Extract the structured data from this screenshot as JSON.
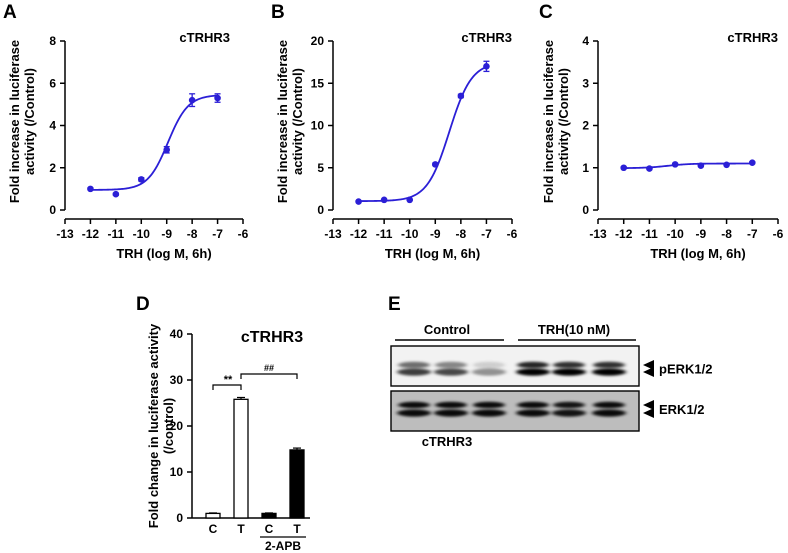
{
  "panel_labels": [
    "A",
    "B",
    "C",
    "D",
    "E"
  ],
  "colors": {
    "curve": "#2b1fd6",
    "axis": "#000000",
    "bar_control": "#ffffff",
    "bar_treated_white": "#ffffff",
    "bar_black": "#000000"
  },
  "chart_data": [
    {
      "panel": "A",
      "type": "line",
      "title": "cTRHR3",
      "xlabel": "TRH (log M, 6h)",
      "ylabel": "Fold increase in luciferase activity (/Control)",
      "xlim": [
        -13,
        -6
      ],
      "ylim": [
        0,
        8
      ],
      "xticks": [
        -13,
        -12,
        -11,
        -10,
        -9,
        -8,
        -7,
        -6
      ],
      "yticks": [
        0,
        2,
        4,
        6,
        8
      ],
      "x": [
        -12,
        -11,
        -10,
        -9,
        -8,
        -7
      ],
      "y": [
        1.0,
        0.75,
        1.45,
        2.85,
        5.2,
        5.3
      ],
      "err": [
        0.05,
        0.05,
        0.08,
        0.15,
        0.3,
        0.2
      ],
      "fit": {
        "bottom": 0.95,
        "top": 5.45,
        "logEC50": -8.95,
        "hill": 1.1
      }
    },
    {
      "panel": "B",
      "type": "line",
      "title": "cTRHR3",
      "xlabel": "TRH (log M, 6h)",
      "ylabel": "Fold increase in luciferase activity (/Control)",
      "xlim": [
        -13,
        -6
      ],
      "ylim": [
        0,
        20
      ],
      "xticks": [
        -13,
        -12,
        -11,
        -10,
        -9,
        -8,
        -7,
        -6
      ],
      "yticks": [
        0,
        5,
        10,
        15,
        20
      ],
      "x": [
        -12,
        -11,
        -10,
        -9,
        -8,
        -7
      ],
      "y": [
        1.0,
        1.2,
        1.2,
        5.4,
        13.5,
        17.0
      ],
      "err": [
        0.05,
        0.05,
        0.05,
        0.15,
        0.2,
        0.6
      ],
      "fit": {
        "bottom": 1.05,
        "top": 17.5,
        "logEC50": -8.45,
        "hill": 1.0
      }
    },
    {
      "panel": "C",
      "type": "line",
      "title": "cTRHR3",
      "xlabel": "TRH (log M, 6h)",
      "ylabel": "Fold increase in luciferase activity (/Control)",
      "xlim": [
        -13,
        -6
      ],
      "ylim": [
        0,
        4
      ],
      "xticks": [
        -13,
        -12,
        -11,
        -10,
        -9,
        -8,
        -7,
        -6
      ],
      "yticks": [
        0,
        1,
        2,
        3,
        4
      ],
      "x": [
        -12,
        -11,
        -10,
        -9,
        -8,
        -7
      ],
      "y": [
        1.0,
        0.98,
        1.08,
        1.05,
        1.07,
        1.12
      ],
      "err": [
        0.02,
        0.02,
        0.02,
        0.02,
        0.02,
        0.02
      ],
      "fit": {
        "bottom": 0.99,
        "top": 1.1,
        "logEC50": -10.3,
        "hill": 1.0
      }
    },
    {
      "panel": "D",
      "type": "bar",
      "title": "cTRHR3",
      "ylabel": "Fold change in luciferase activity (/control)",
      "ylim": [
        0,
        40
      ],
      "yticks": [
        0,
        10,
        20,
        30,
        40
      ],
      "categories": [
        "C",
        "T",
        "C",
        "T"
      ],
      "values": [
        1.0,
        25.8,
        1.0,
        14.8
      ],
      "err": [
        0.1,
        0.4,
        0.1,
        0.4
      ],
      "fills": [
        "white",
        "white",
        "black",
        "black"
      ],
      "group_label": "2-APB",
      "annotations": [
        {
          "text": "**",
          "between": [
            0,
            1
          ]
        },
        {
          "text": "##",
          "between": [
            1,
            3
          ]
        }
      ]
    }
  ],
  "blot": {
    "groups": [
      {
        "label": "Control"
      },
      {
        "label": "TRH(10 nM)"
      }
    ],
    "rows": [
      {
        "label": "pERK1/2"
      },
      {
        "label": "ERK1/2"
      }
    ],
    "caption": "cTRHR3",
    "lanes": [
      {
        "group": 0,
        "p_upper": 0.55,
        "p_lower": 0.75,
        "t_upper": 0.95,
        "t_lower": 0.95
      },
      {
        "group": 0,
        "p_upper": 0.45,
        "p_lower": 0.7,
        "t_upper": 0.95,
        "t_lower": 0.95
      },
      {
        "group": 0,
        "p_upper": 0.15,
        "p_lower": 0.4,
        "t_upper": 0.95,
        "t_lower": 0.95
      },
      {
        "group": 1,
        "p_upper": 0.85,
        "p_lower": 1.0,
        "t_upper": 0.95,
        "t_lower": 0.95
      },
      {
        "group": 1,
        "p_upper": 0.8,
        "p_lower": 1.0,
        "t_upper": 0.9,
        "t_lower": 0.9
      },
      {
        "group": 1,
        "p_upper": 0.8,
        "p_lower": 1.0,
        "t_upper": 0.95,
        "t_lower": 0.95
      }
    ]
  }
}
